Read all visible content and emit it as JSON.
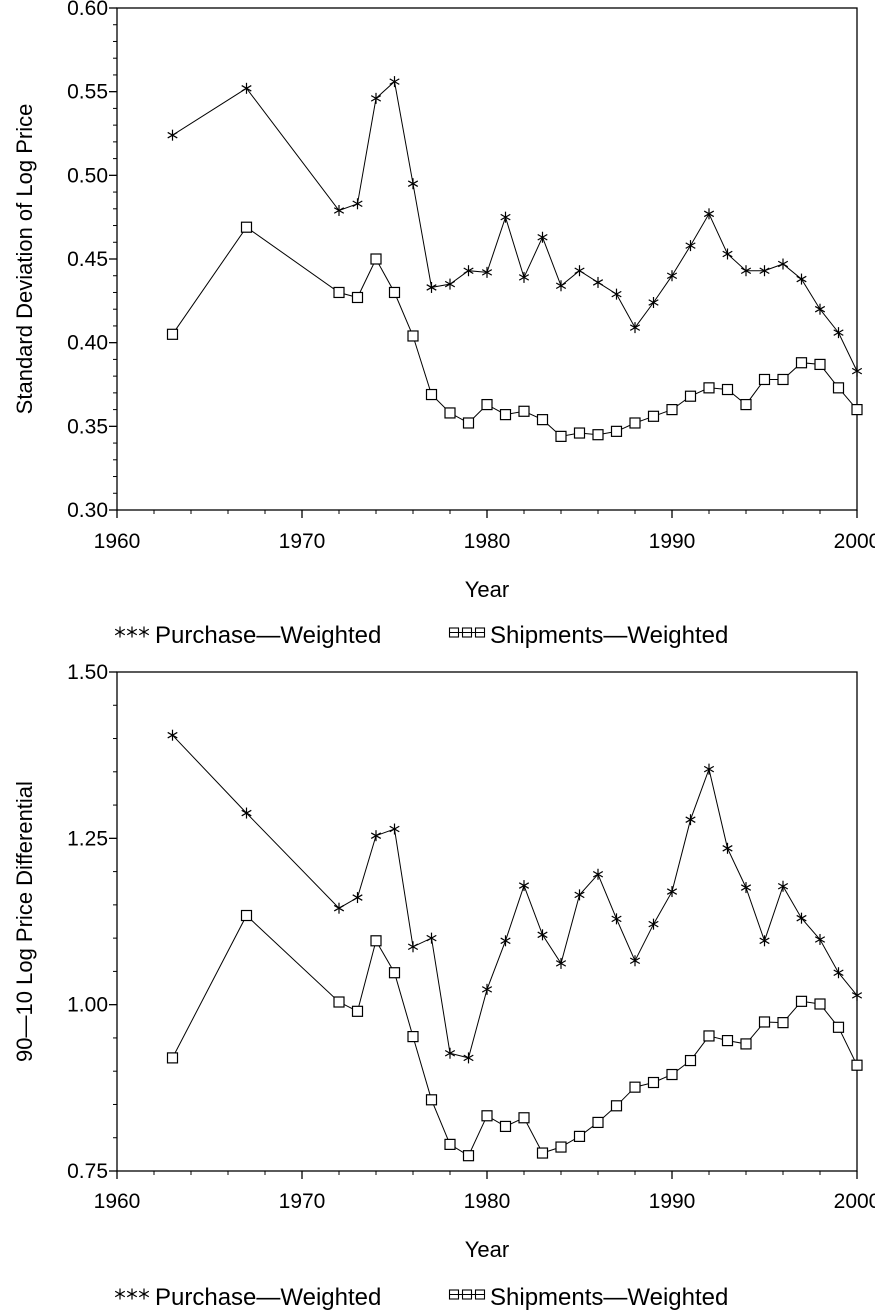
{
  "chart_data": [
    {
      "type": "line",
      "title": "",
      "xlabel": "Year",
      "ylabel": "Standard Deviation of Log Price",
      "xlim": [
        1960,
        2000
      ],
      "ylim": [
        0.3,
        0.6
      ],
      "xticks": [
        1960,
        1970,
        1980,
        1990,
        2000
      ],
      "xtick_labels": [
        "1960",
        "1970",
        "1980",
        "1990",
        "2000"
      ],
      "yticks": [
        0.3,
        0.35,
        0.4,
        0.45,
        0.5,
        0.55,
        0.6
      ],
      "ytick_labels": [
        "0.30",
        "0.35",
        "0.40",
        "0.45",
        "0.50",
        "0.55",
        "0.60"
      ],
      "grid": false,
      "legend_position": "bottom",
      "x": [
        1963,
        1967,
        1972,
        1973,
        1974,
        1975,
        1976,
        1977,
        1978,
        1979,
        1980,
        1981,
        1982,
        1983,
        1984,
        1985,
        1986,
        1987,
        1988,
        1989,
        1990,
        1991,
        1992,
        1993,
        1994,
        1995,
        1996,
        1997,
        1998,
        1999,
        2000
      ],
      "series": [
        {
          "name": "Purchase—Weighted",
          "marker": "asterisk",
          "values": [
            0.524,
            0.552,
            0.479,
            0.483,
            0.546,
            0.556,
            0.495,
            0.433,
            0.435,
            0.443,
            0.442,
            0.475,
            0.439,
            0.463,
            0.434,
            0.443,
            0.436,
            0.429,
            0.409,
            0.424,
            0.44,
            0.458,
            0.477,
            0.453,
            0.443,
            0.443,
            0.447,
            0.438,
            0.42,
            0.406,
            0.383
          ]
        },
        {
          "name": "Shipments—Weighted",
          "marker": "square",
          "values": [
            0.405,
            0.469,
            0.43,
            0.427,
            0.45,
            0.43,
            0.404,
            0.369,
            0.358,
            0.352,
            0.363,
            0.357,
            0.359,
            0.354,
            0.344,
            0.346,
            0.345,
            0.347,
            0.352,
            0.356,
            0.36,
            0.368,
            0.373,
            0.372,
            0.363,
            0.378,
            0.378,
            0.388,
            0.387,
            0.373,
            0.36
          ]
        }
      ]
    },
    {
      "type": "line",
      "title": "",
      "xlabel": "Year",
      "ylabel": "90—10 Log Price Differential",
      "xlim": [
        1960,
        2000
      ],
      "ylim": [
        0.75,
        1.5
      ],
      "xticks": [
        1960,
        1970,
        1980,
        1990,
        2000
      ],
      "xtick_labels": [
        "1960",
        "1970",
        "1980",
        "1990",
        "2000"
      ],
      "yticks": [
        0.75,
        1.0,
        1.25,
        1.5
      ],
      "ytick_labels": [
        "0.75",
        "1.00",
        "1.25",
        "1.50"
      ],
      "grid": false,
      "legend_position": "bottom",
      "x": [
        1963,
        1967,
        1972,
        1973,
        1974,
        1975,
        1976,
        1977,
        1978,
        1979,
        1980,
        1981,
        1982,
        1983,
        1984,
        1985,
        1986,
        1987,
        1988,
        1989,
        1990,
        1991,
        1992,
        1993,
        1994,
        1995,
        1996,
        1997,
        1998,
        1999,
        2000
      ],
      "series": [
        {
          "name": "Purchase—Weighted",
          "marker": "asterisk",
          "values": [
            1.405,
            1.288,
            1.145,
            1.161,
            1.254,
            1.264,
            1.087,
            1.1,
            0.927,
            0.92,
            1.023,
            1.096,
            1.179,
            1.105,
            1.062,
            1.165,
            1.196,
            1.129,
            1.066,
            1.121,
            1.17,
            1.278,
            1.354,
            1.235,
            1.176,
            1.096,
            1.178,
            1.13,
            1.098,
            1.048,
            1.014
          ]
        },
        {
          "name": "Shipments—Weighted",
          "marker": "square",
          "values": [
            0.92,
            1.134,
            1.004,
            0.99,
            1.096,
            1.048,
            0.952,
            0.857,
            0.79,
            0.773,
            0.833,
            0.817,
            0.83,
            0.777,
            0.786,
            0.802,
            0.823,
            0.848,
            0.876,
            0.883,
            0.895,
            0.916,
            0.953,
            0.946,
            0.941,
            0.974,
            0.973,
            1.005,
            1.001,
            0.966,
            0.909
          ]
        }
      ]
    }
  ]
}
